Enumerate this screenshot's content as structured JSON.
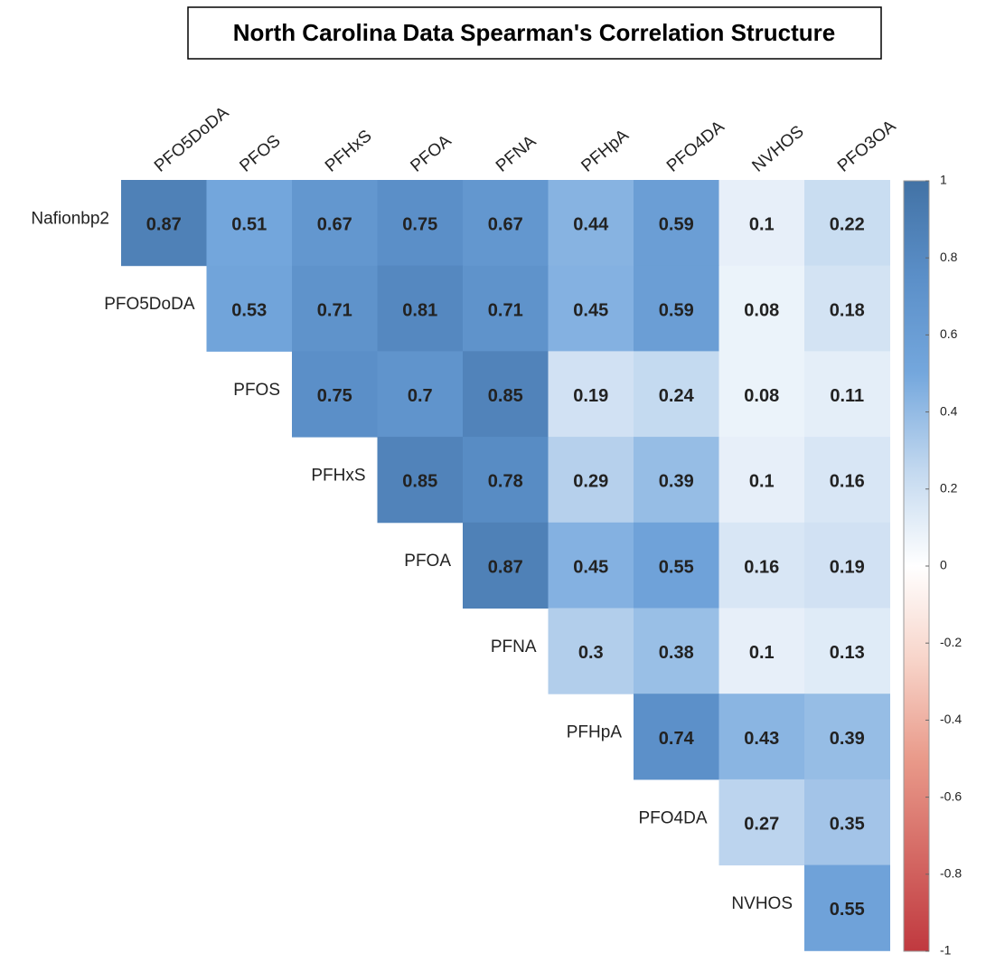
{
  "chart_data": {
    "type": "heatmap",
    "title": "North Carolina Data Spearman's Correlation Structure",
    "x_categories": [
      "PFO5DoDA",
      "PFOS",
      "PFHxS",
      "PFOA",
      "PFNA",
      "PFHpA",
      "PFO4DA",
      "NVHOS",
      "PFO3OA"
    ],
    "y_categories": [
      "Nafionbp2",
      "PFO5DoDA",
      "PFOS",
      "PFHxS",
      "PFOA",
      "PFNA",
      "PFHpA",
      "PFO4DA",
      "NVHOS"
    ],
    "values": [
      [
        0.87,
        0.51,
        0.67,
        0.75,
        0.67,
        0.44,
        0.59,
        0.1,
        0.22
      ],
      [
        null,
        0.53,
        0.71,
        0.81,
        0.71,
        0.45,
        0.59,
        0.08,
        0.18
      ],
      [
        null,
        null,
        0.75,
        0.7,
        0.85,
        0.19,
        0.24,
        0.08,
        0.11
      ],
      [
        null,
        null,
        null,
        0.85,
        0.78,
        0.29,
        0.39,
        0.1,
        0.16
      ],
      [
        null,
        null,
        null,
        null,
        0.87,
        0.45,
        0.55,
        0.16,
        0.19
      ],
      [
        null,
        null,
        null,
        null,
        null,
        0.3,
        0.38,
        0.1,
        0.13
      ],
      [
        null,
        null,
        null,
        null,
        null,
        null,
        0.74,
        0.43,
        0.39
      ],
      [
        null,
        null,
        null,
        null,
        null,
        null,
        null,
        0.27,
        0.35
      ],
      [
        null,
        null,
        null,
        null,
        null,
        null,
        null,
        null,
        0.55
      ]
    ],
    "clim": [
      -1,
      1
    ],
    "cticks": [
      1,
      0.8,
      0.6,
      0.4,
      0.2,
      0,
      -0.2,
      -0.4,
      -0.6,
      -0.8,
      -1
    ],
    "colorscale": [
      [
        -1,
        "#c0393f"
      ],
      [
        -0.5,
        "#e99a8a"
      ],
      [
        -0.25,
        "#f7d3c8"
      ],
      [
        0,
        "#ffffff"
      ],
      [
        0.25,
        "#c2d8ef"
      ],
      [
        0.5,
        "#74a7dd"
      ],
      [
        0.75,
        "#5b8fc8"
      ],
      [
        1,
        "#4272a5"
      ]
    ]
  }
}
